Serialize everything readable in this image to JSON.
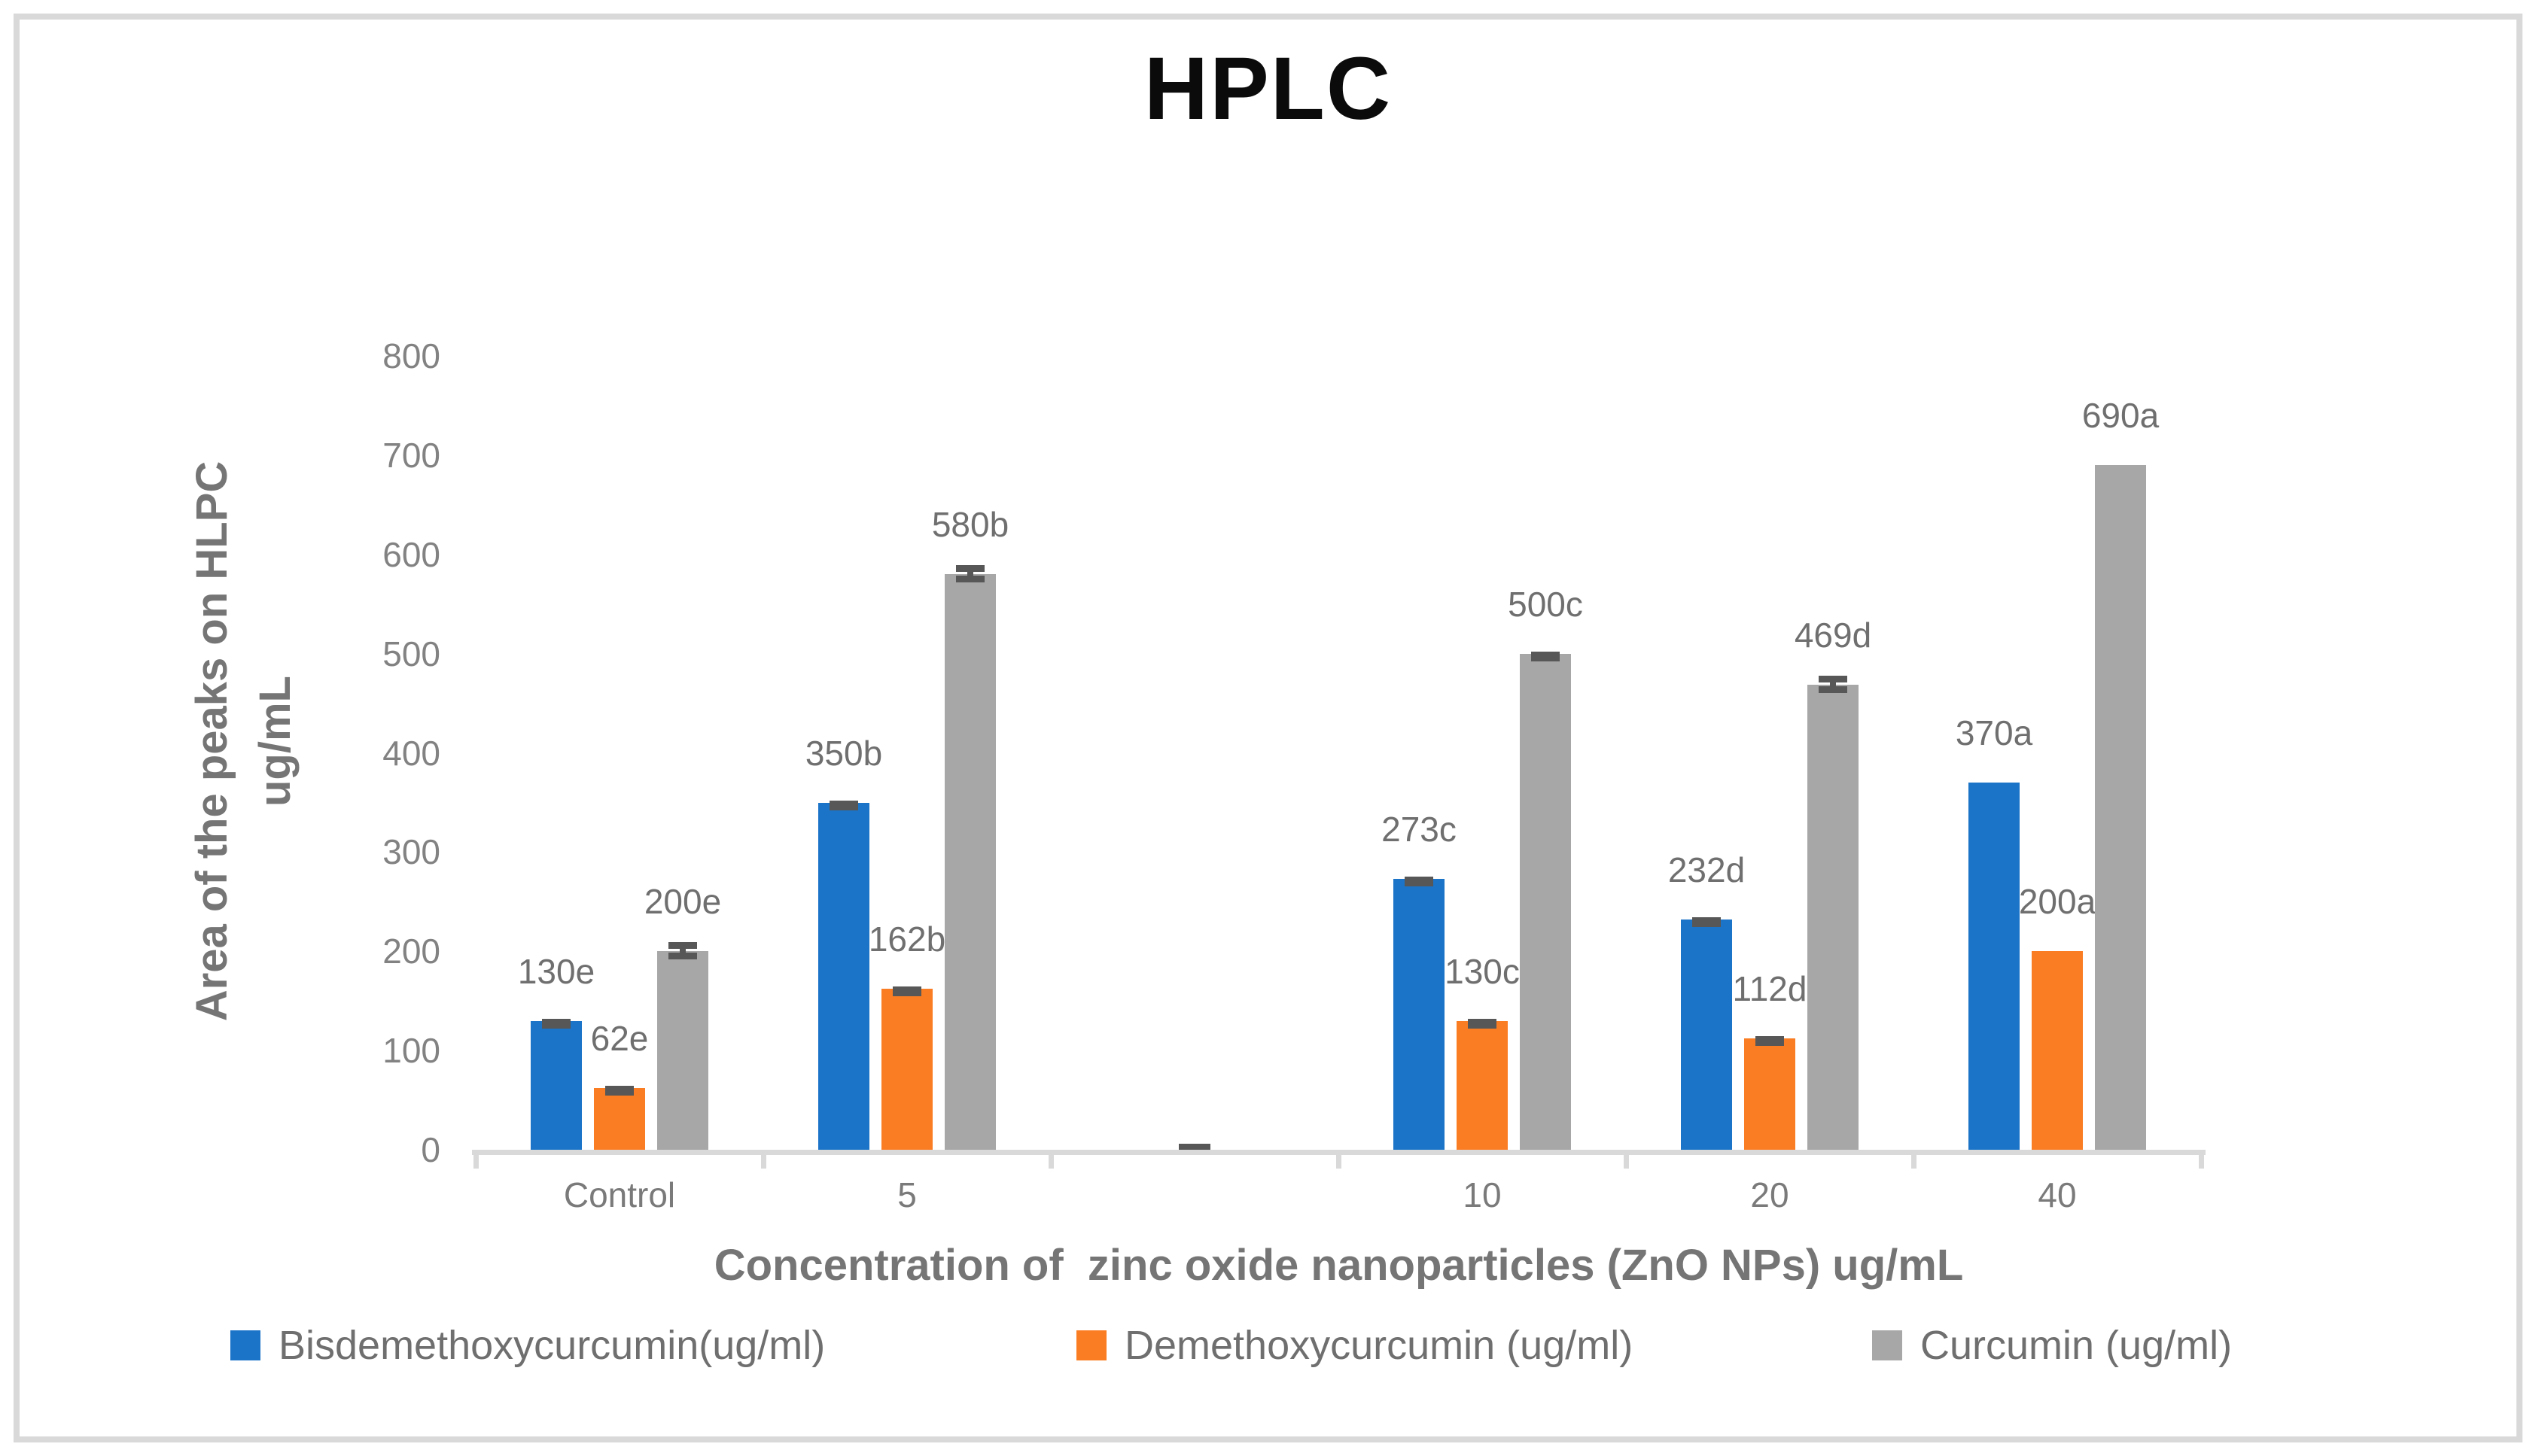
{
  "title": "HPLC",
  "y_axis": {
    "title_line1": "Area of the peaks on HLPC",
    "title_line2": "ug/mL",
    "tick_labels": [
      "800",
      "700",
      "600",
      "500",
      "400",
      "300",
      "200",
      "100",
      "0"
    ]
  },
  "x_axis": {
    "title": "Concentration of  zinc oxide nanoparticles (ZnO NPs) ug/mL",
    "category_labels": [
      "Control",
      "5",
      "10",
      "20",
      "40"
    ]
  },
  "legend": {
    "items": [
      "Bisdemethoxycurcumin(ug/ml)",
      "Demethoxycurcumin (ug/ml)",
      "Curcumin (ug/ml)"
    ]
  },
  "colors": {
    "series_blue": "#1b74c8",
    "series_orange": "#fb7d23",
    "series_gray": "#a7a7a7",
    "error_bar": "#575757",
    "axis_line": "#d9d9d9",
    "title_text": "#0b0b0b",
    "axis_title_text": "#757575",
    "tick_text": "#828282",
    "data_label_text": "#6f6f6f"
  },
  "chart_data": {
    "type": "bar",
    "title": "HPLC",
    "xlabel": "Concentration of  zinc oxide nanoparticles (ZnO NPs) ug/mL",
    "ylabel": "Area of the peaks on HLPC ug/mL",
    "ylim": [
      0,
      800
    ],
    "ytick_step": 100,
    "grid": false,
    "legend_position": "bottom",
    "categories": [
      "Control",
      "5",
      "10",
      "20",
      "40"
    ],
    "series": [
      {
        "name": "Bisdemethoxycurcumin(ug/ml)",
        "color": "#1b74c8",
        "values": [
          130,
          350,
          273,
          232,
          370
        ],
        "point_labels": [
          "130e",
          "350b",
          "273c",
          "232d",
          "370a"
        ],
        "error_caps": [
          "single",
          "single",
          "single",
          "single",
          "none"
        ]
      },
      {
        "name": "Demethoxycurcumin (ug/ml)",
        "color": "#fb7d23",
        "values": [
          62,
          162,
          130,
          112,
          200
        ],
        "point_labels": [
          "62e",
          "162b",
          "130c",
          "112d",
          "200a"
        ],
        "error_caps": [
          "single",
          "single",
          "single",
          "single",
          "none"
        ]
      },
      {
        "name": "Curcumin (ug/ml)",
        "color": "#a7a7a7",
        "values": [
          200,
          580,
          500,
          469,
          690
        ],
        "point_labels": [
          "200e",
          "580b",
          "500c",
          "469d",
          "690a"
        ],
        "error_caps": [
          "double",
          "double",
          "single",
          "double",
          "none"
        ]
      }
    ],
    "near_zero_mark": {
      "present": true,
      "between_categories": [
        "5",
        "10"
      ],
      "approx_value": 4
    }
  }
}
